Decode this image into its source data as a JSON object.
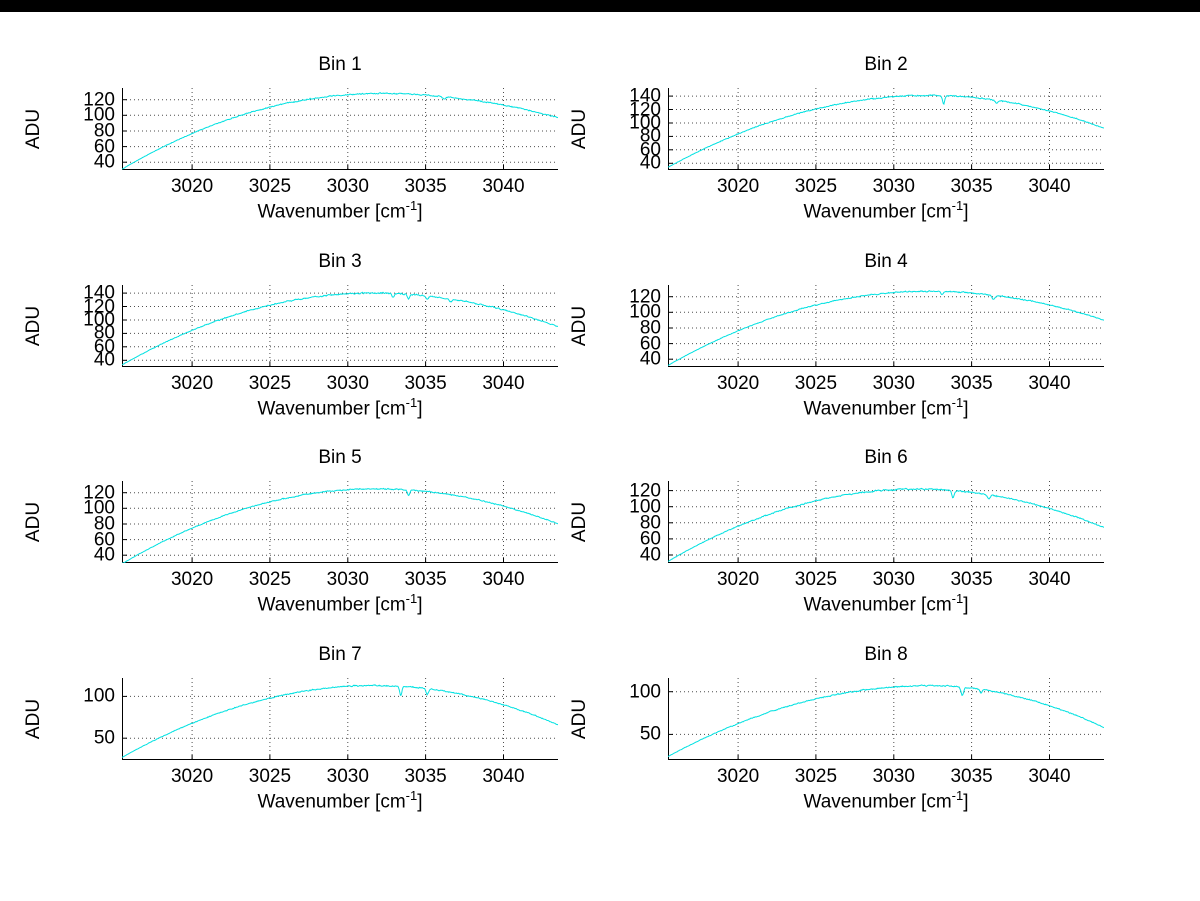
{
  "page": {
    "background": "#ffffff",
    "top_border_color": "#000000"
  },
  "labels": {
    "x_main": "Wavenumber [cm",
    "x_sup": "-1",
    "x_close": "]",
    "y": "ADU"
  },
  "line_color": "#00e1e1",
  "grid_color": "#4d4d4d",
  "axis_color": "#000000",
  "chart_data": [
    {
      "type": "line",
      "title": "Bin 1",
      "xlabel": "Wavenumber [cm⁻¹]",
      "ylabel": "ADU",
      "xlim": [
        3015.5,
        3043.5
      ],
      "ylim": [
        30,
        135
      ],
      "xticks": [
        3020,
        3025,
        3030,
        3035,
        3040
      ],
      "yticks": [
        40,
        60,
        80,
        100,
        120
      ],
      "grid": true,
      "legend": false,
      "curve": {
        "start": 31,
        "peak": 128,
        "peak_x": 3032.0,
        "end": 97,
        "noise": 1.0,
        "dips": [
          {
            "x": 3036.2,
            "depth": 3,
            "width": 0.15
          }
        ]
      },
      "key_points": [
        [
          3020,
          67
        ],
        [
          3025,
          107
        ],
        [
          3030,
          126
        ],
        [
          3032,
          128
        ],
        [
          3035,
          126
        ],
        [
          3040,
          112
        ]
      ]
    },
    {
      "type": "line",
      "title": "Bin 2",
      "xlabel": "Wavenumber [cm⁻¹]",
      "ylabel": "ADU",
      "xlim": [
        3015.5,
        3043.5
      ],
      "ylim": [
        30,
        152
      ],
      "xticks": [
        3020,
        3025,
        3030,
        3035,
        3040
      ],
      "yticks": [
        40,
        60,
        80,
        100,
        120,
        140
      ],
      "grid": true,
      "legend": false,
      "curve": {
        "start": 34,
        "peak": 141,
        "peak_x": 3032.3,
        "end": 92,
        "noise": 1.2,
        "dips": [
          {
            "x": 3033.2,
            "depth": 13,
            "width": 0.1
          },
          {
            "x": 3036.6,
            "depth": 4,
            "width": 0.12
          }
        ]
      },
      "key_points": [
        [
          3020,
          73
        ],
        [
          3025,
          117
        ],
        [
          3030,
          139
        ],
        [
          3032,
          141
        ],
        [
          3035,
          138
        ],
        [
          3040,
          117
        ]
      ]
    },
    {
      "type": "line",
      "title": "Bin 3",
      "xlabel": "Wavenumber [cm⁻¹]",
      "ylabel": "ADU",
      "xlim": [
        3015.5,
        3043.5
      ],
      "ylim": [
        30,
        152
      ],
      "xticks": [
        3020,
        3025,
        3030,
        3035,
        3040
      ],
      "yticks": [
        40,
        60,
        80,
        100,
        120,
        140
      ],
      "grid": true,
      "legend": false,
      "curve": {
        "start": 33,
        "peak": 140,
        "peak_x": 3031.6,
        "end": 90,
        "noise": 1.4,
        "dips": [
          {
            "x": 3032.9,
            "depth": 6,
            "width": 0.1
          },
          {
            "x": 3033.9,
            "depth": 7,
            "width": 0.1
          },
          {
            "x": 3035.1,
            "depth": 5,
            "width": 0.12
          },
          {
            "x": 3036.6,
            "depth": 4,
            "width": 0.12
          }
        ]
      },
      "key_points": [
        [
          3020,
          74
        ],
        [
          3025,
          119
        ],
        [
          3030,
          139
        ],
        [
          3032,
          140
        ],
        [
          3035,
          136
        ],
        [
          3040,
          114
        ]
      ]
    },
    {
      "type": "line",
      "title": "Bin 4",
      "xlabel": "Wavenumber [cm⁻¹]",
      "ylabel": "ADU",
      "xlim": [
        3015.5,
        3043.5
      ],
      "ylim": [
        30,
        135
      ],
      "xticks": [
        3020,
        3025,
        3030,
        3035,
        3040
      ],
      "yticks": [
        40,
        60,
        80,
        100,
        120
      ],
      "grid": true,
      "legend": false,
      "curve": {
        "start": 32,
        "peak": 127,
        "peak_x": 3032.2,
        "end": 90,
        "noise": 1.0,
        "dips": [
          {
            "x": 3033.1,
            "depth": 4,
            "width": 0.1
          },
          {
            "x": 3036.4,
            "depth": 5,
            "width": 0.14
          }
        ]
      },
      "key_points": [
        [
          3020,
          67
        ],
        [
          3025,
          106
        ],
        [
          3030,
          125
        ],
        [
          3032,
          127
        ],
        [
          3035,
          125
        ],
        [
          3040,
          108
        ]
      ]
    },
    {
      "type": "line",
      "title": "Bin 5",
      "xlabel": "Wavenumber [cm⁻¹]",
      "ylabel": "ADU",
      "xlim": [
        3015.5,
        3043.5
      ],
      "ylim": [
        30,
        135
      ],
      "xticks": [
        3020,
        3025,
        3030,
        3035,
        3040
      ],
      "yticks": [
        40,
        60,
        80,
        100,
        120
      ],
      "grid": true,
      "legend": false,
      "curve": {
        "start": 29,
        "peak": 125,
        "peak_x": 3031.8,
        "end": 80,
        "noise": 1.0,
        "dips": [
          {
            "x": 3033.9,
            "depth": 7,
            "width": 0.1
          }
        ]
      },
      "key_points": [
        [
          3020,
          66
        ],
        [
          3025,
          105
        ],
        [
          3030,
          124
        ],
        [
          3032,
          125
        ],
        [
          3035,
          121
        ],
        [
          3040,
          102
        ]
      ]
    },
    {
      "type": "line",
      "title": "Bin 6",
      "xlabel": "Wavenumber [cm⁻¹]",
      "ylabel": "ADU",
      "xlim": [
        3015.5,
        3043.5
      ],
      "ylim": [
        30,
        132
      ],
      "xticks": [
        3020,
        3025,
        3030,
        3035,
        3040
      ],
      "yticks": [
        40,
        60,
        80,
        100,
        120
      ],
      "grid": true,
      "legend": false,
      "curve": {
        "start": 32,
        "peak": 122,
        "peak_x": 3031.4,
        "end": 74,
        "noise": 1.2,
        "dips": [
          {
            "x": 3033.8,
            "depth": 9,
            "width": 0.11
          },
          {
            "x": 3036.1,
            "depth": 5,
            "width": 0.12
          }
        ]
      },
      "key_points": [
        [
          3020,
          67
        ],
        [
          3025,
          105
        ],
        [
          3030,
          121
        ],
        [
          3031,
          122
        ],
        [
          3035,
          118
        ],
        [
          3040,
          96
        ]
      ]
    },
    {
      "type": "line",
      "title": "Bin 7",
      "xlabel": "Wavenumber [cm⁻¹]",
      "ylabel": "ADU",
      "xlim": [
        3015.5,
        3043.5
      ],
      "ylim": [
        24,
        122
      ],
      "xticks": [
        3020,
        3025,
        3030,
        3035,
        3040
      ],
      "yticks": [
        50,
        100
      ],
      "grid": true,
      "legend": false,
      "curve": {
        "start": 27,
        "peak": 113,
        "peak_x": 3031.8,
        "end": 66,
        "noise": 1.0,
        "dips": [
          {
            "x": 3033.4,
            "depth": 11,
            "width": 0.1
          },
          {
            "x": 3035.1,
            "depth": 7,
            "width": 0.11
          }
        ]
      },
      "key_points": [
        [
          3020,
          60
        ],
        [
          3025,
          95
        ],
        [
          3030,
          112
        ],
        [
          3032,
          113
        ],
        [
          3035,
          109
        ],
        [
          3040,
          89
        ]
      ]
    },
    {
      "type": "line",
      "title": "Bin 8",
      "xlabel": "Wavenumber [cm⁻¹]",
      "ylabel": "ADU",
      "xlim": [
        3015.5,
        3043.5
      ],
      "ylim": [
        20,
        116
      ],
      "xticks": [
        3020,
        3025,
        3030,
        3035,
        3040
      ],
      "yticks": [
        50,
        100
      ],
      "grid": true,
      "legend": false,
      "curve": {
        "start": 24,
        "peak": 107,
        "peak_x": 3032.2,
        "end": 58,
        "noise": 1.0,
        "dips": [
          {
            "x": 3034.4,
            "depth": 10,
            "width": 0.11
          },
          {
            "x": 3035.6,
            "depth": 4,
            "width": 0.1
          }
        ]
      },
      "key_points": [
        [
          3020,
          55
        ],
        [
          3025,
          89
        ],
        [
          3030,
          105
        ],
        [
          3032,
          107
        ],
        [
          3035,
          104
        ],
        [
          3040,
          82
        ]
      ]
    }
  ]
}
